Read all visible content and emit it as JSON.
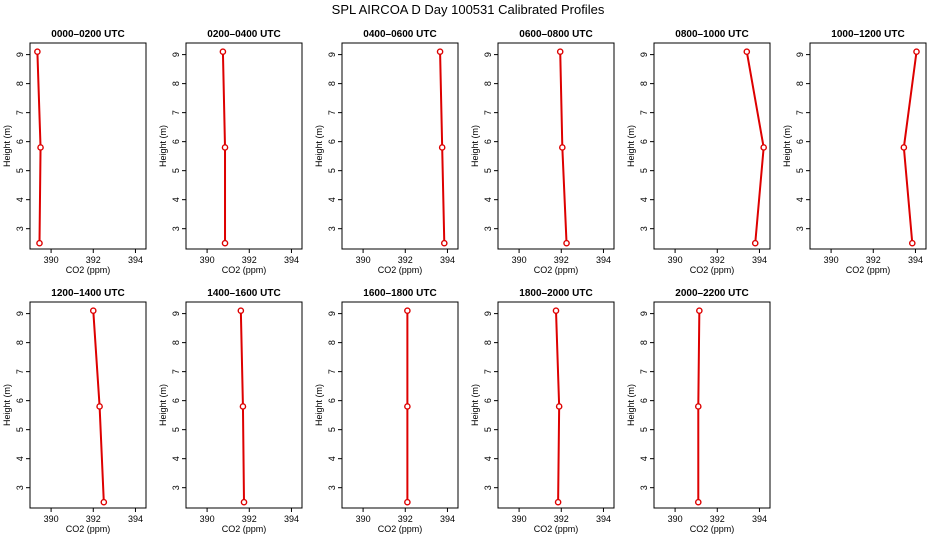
{
  "title": "SPL AIRCOA D  Day 100531  Calibrated Profiles",
  "chart_data": {
    "type": "line",
    "xlabel": "CO2 (ppm)",
    "ylabel": "Height (m)",
    "xlim": [
      389,
      394.5
    ],
    "ylim": [
      2.3,
      9.4
    ],
    "x_ticks": [
      390,
      392,
      394
    ],
    "y_ticks": [
      3,
      4,
      5,
      6,
      7,
      8,
      9
    ],
    "grid": false,
    "line_color": "#dd0000",
    "heights": [
      2.5,
      5.8,
      9.1
    ],
    "panels": [
      {
        "title": "0000–0200 UTC",
        "co2": [
          389.45,
          389.5,
          389.35
        ]
      },
      {
        "title": "0200–0400 UTC",
        "co2": [
          390.85,
          390.85,
          390.75
        ]
      },
      {
        "title": "0400–0600 UTC",
        "co2": [
          393.85,
          393.75,
          393.65
        ]
      },
      {
        "title": "0600–0800 UTC",
        "co2": [
          392.25,
          392.05,
          391.95
        ]
      },
      {
        "title": "0800–1000 UTC",
        "co2": [
          393.8,
          394.2,
          393.4
        ]
      },
      {
        "title": "1000–1200 UTC",
        "co2": [
          393.85,
          393.45,
          394.05
        ]
      },
      {
        "title": "1200–1400 UTC",
        "co2": [
          392.5,
          392.3,
          392.0
        ]
      },
      {
        "title": "1400–1600 UTC",
        "co2": [
          391.75,
          391.7,
          391.6
        ]
      },
      {
        "title": "1600–1800 UTC",
        "co2": [
          392.1,
          392.1,
          392.1
        ]
      },
      {
        "title": "1800–2000 UTC",
        "co2": [
          391.85,
          391.9,
          391.75
        ]
      },
      {
        "title": "2000–2200 UTC",
        "co2": [
          391.1,
          391.1,
          391.15
        ]
      }
    ]
  }
}
